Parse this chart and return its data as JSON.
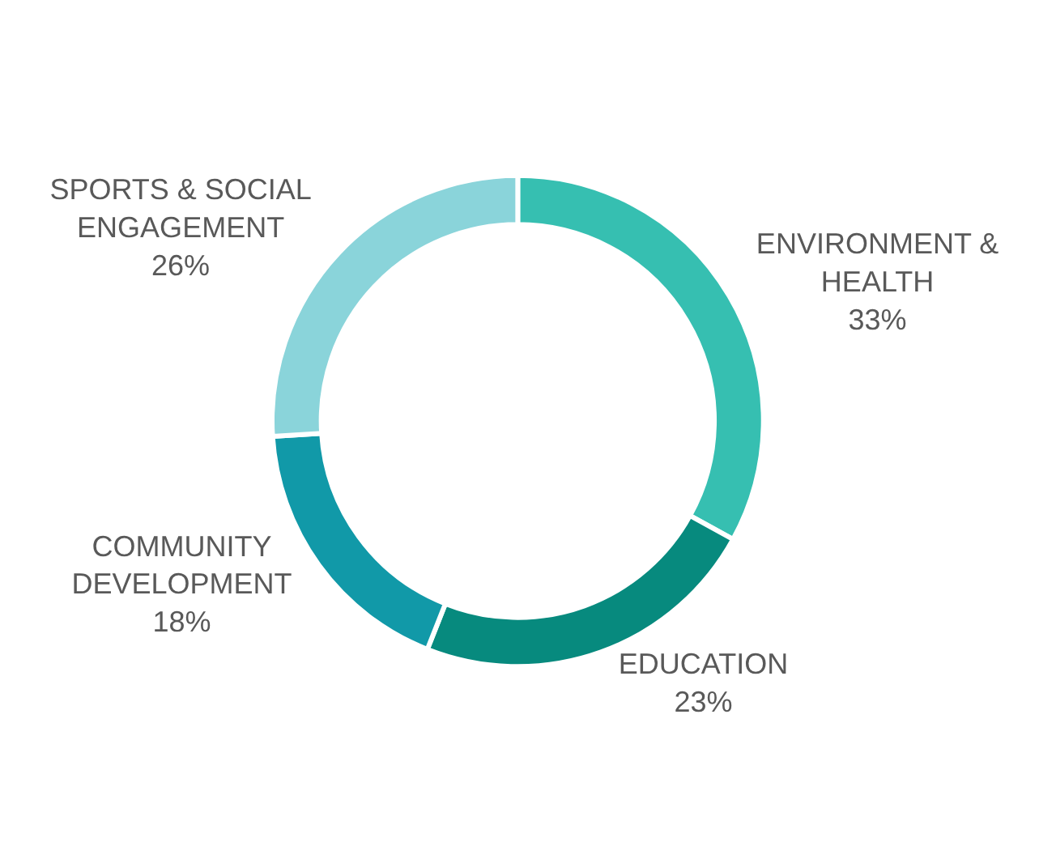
{
  "chart_data": {
    "type": "donut",
    "categories": [
      "ENVIRONMENT & HEALTH",
      "EDUCATION",
      "COMMUNITY DEVELOPMENT",
      "SPORTS & SOCIAL ENGAGEMENT"
    ],
    "values": [
      33,
      23,
      18,
      26
    ],
    "colors": [
      "#36bfb1",
      "#078a7e",
      "#1199a8",
      "#8ad4da"
    ],
    "value_labels": [
      "33%",
      "23%",
      "18%",
      "26%"
    ],
    "legend": false
  }
}
